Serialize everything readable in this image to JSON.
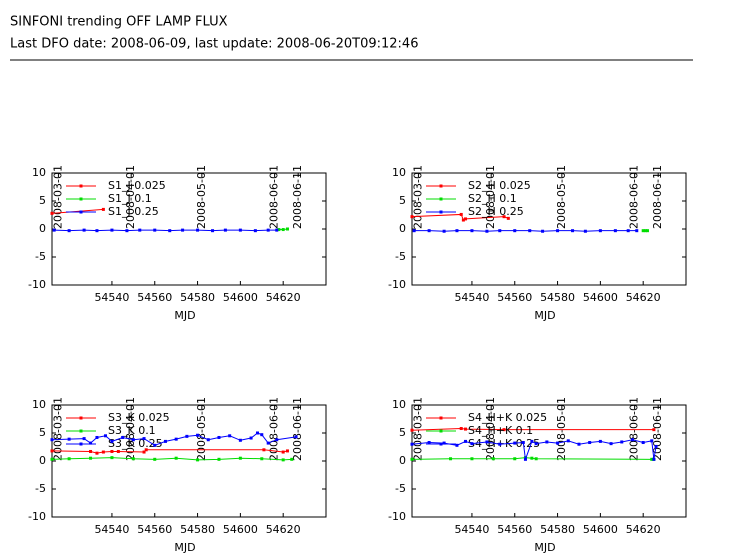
{
  "header": {
    "title": "SINFONI trending OFF LAMP FLUX",
    "subtitle": "Last DFO date: 2008-06-09, last update: 2008-06-20T09:12:46"
  },
  "chart_data": [
    {
      "type": "line",
      "x_label": "MJD",
      "xlim": [
        54512,
        54640
      ],
      "xticks": [
        54540,
        54560,
        54580,
        54600,
        54620
      ],
      "x2ticks": [
        {
          "value": 54515,
          "label": "2008-03-01"
        },
        {
          "value": 54549,
          "label": "2008-04-01"
        },
        {
          "value": 54582,
          "label": "2008-05-01"
        },
        {
          "value": 54616,
          "label": "2008-06-01"
        },
        {
          "value": 54627,
          "label": "2008-06-11"
        }
      ],
      "ylim": [
        -10,
        10
      ],
      "yticks": [
        -10,
        -5,
        0,
        5,
        10
      ],
      "series": [
        {
          "name": "S1_J 0.025",
          "color": "#ff0000",
          "x": [
            54512,
            54536
          ],
          "values": [
            2.8,
            3.5
          ]
        },
        {
          "name": "S1_J 0.1",
          "color": "#00dd00",
          "x": [
            54618,
            54620,
            54622
          ],
          "values": [
            -0.1,
            -0.1,
            0.0
          ]
        },
        {
          "name": "S1_J 0.25",
          "color": "#0000ff",
          "x": [
            54513,
            54520,
            54527,
            54533,
            54540,
            54547,
            54553,
            54560,
            54567,
            54573,
            54580,
            54587,
            54593,
            54600,
            54607,
            54613,
            54617
          ],
          "values": [
            -0.2,
            -0.3,
            -0.2,
            -0.3,
            -0.2,
            -0.3,
            -0.2,
            -0.2,
            -0.3,
            -0.2,
            -0.2,
            -0.3,
            -0.2,
            -0.2,
            -0.3,
            -0.2,
            -0.2
          ]
        }
      ]
    },
    {
      "type": "line",
      "x_label": "MJD",
      "xlim": [
        54512,
        54640
      ],
      "xticks": [
        54540,
        54560,
        54580,
        54600,
        54620
      ],
      "x2ticks": [
        {
          "value": 54515,
          "label": "2008-03-01"
        },
        {
          "value": 54549,
          "label": "2008-04-01"
        },
        {
          "value": 54582,
          "label": "2008-05-01"
        },
        {
          "value": 54616,
          "label": "2008-06-01"
        },
        {
          "value": 54627,
          "label": "2008-06-11"
        }
      ],
      "ylim": [
        -10,
        10
      ],
      "yticks": [
        -10,
        -5,
        0,
        5,
        10
      ],
      "series": [
        {
          "name": "S2_H 0.025",
          "color": "#ff0000",
          "x": [
            54512,
            54535,
            54536,
            54537,
            54555,
            54557
          ],
          "values": [
            2.2,
            2.6,
            1.6,
            1.8,
            2.2,
            1.9
          ]
        },
        {
          "name": "S2_H 0.1",
          "color": "#00dd00",
          "x": [
            54620,
            54621,
            54622
          ],
          "values": [
            -0.3,
            -0.3,
            -0.3
          ]
        },
        {
          "name": "S2_H 0.25",
          "color": "#0000ff",
          "x": [
            54513,
            54520,
            54527,
            54533,
            54540,
            54547,
            54553,
            54560,
            54567,
            54573,
            54580,
            54587,
            54593,
            54600,
            54607,
            54613,
            54617
          ],
          "values": [
            -0.3,
            -0.3,
            -0.4,
            -0.3,
            -0.3,
            -0.4,
            -0.3,
            -0.3,
            -0.3,
            -0.4,
            -0.3,
            -0.3,
            -0.4,
            -0.3,
            -0.3,
            -0.3,
            -0.3
          ]
        }
      ]
    },
    {
      "type": "line",
      "x_label": "MJD",
      "xlim": [
        54512,
        54640
      ],
      "xticks": [
        54540,
        54560,
        54580,
        54600,
        54620
      ],
      "x2ticks": [
        {
          "value": 54515,
          "label": "2008-03-01"
        },
        {
          "value": 54549,
          "label": "2008-04-01"
        },
        {
          "value": 54582,
          "label": "2008-05-01"
        },
        {
          "value": 54616,
          "label": "2008-06-01"
        },
        {
          "value": 54627,
          "label": "2008-06-11"
        }
      ],
      "ylim": [
        -10,
        10
      ],
      "yticks": [
        -10,
        -5,
        0,
        5,
        10
      ],
      "series": [
        {
          "name": "S3_K 0.025",
          "color": "#ff0000",
          "x": [
            54512,
            54530,
            54533,
            54536,
            54540,
            54543,
            54555,
            54556,
            54611,
            54620,
            54622
          ],
          "values": [
            1.8,
            1.7,
            1.4,
            1.6,
            1.7,
            1.7,
            1.6,
            2.0,
            2.0,
            1.6,
            1.8
          ]
        },
        {
          "name": "S3_K 0.1",
          "color": "#00dd00",
          "x": [
            54512,
            54520,
            54530,
            54540,
            54550,
            54560,
            54570,
            54580,
            54590,
            54600,
            54610,
            54620,
            54624
          ],
          "values": [
            0.3,
            0.4,
            0.5,
            0.6,
            0.4,
            0.3,
            0.5,
            0.2,
            0.3,
            0.5,
            0.4,
            0.2,
            0.3
          ]
        },
        {
          "name": "S3_K 0.25",
          "color": "#0000ff",
          "x": [
            54512,
            54520,
            54527,
            54530,
            54533,
            54537,
            54540,
            54545,
            54550,
            54555,
            54560,
            54565,
            54570,
            54575,
            54580,
            54585,
            54590,
            54595,
            54600,
            54605,
            54608,
            54610,
            54613,
            54617,
            54626
          ],
          "values": [
            3.8,
            3.9,
            4.0,
            3.2,
            4.2,
            4.5,
            3.5,
            4.2,
            3.8,
            4.0,
            2.8,
            3.5,
            3.9,
            4.4,
            4.6,
            3.8,
            4.2,
            4.5,
            3.7,
            4.1,
            5.0,
            4.7,
            3.2,
            3.8,
            4.3
          ]
        }
      ]
    },
    {
      "type": "line",
      "x_label": "MJD",
      "xlim": [
        54512,
        54640
      ],
      "xticks": [
        54540,
        54560,
        54580,
        54600,
        54620
      ],
      "x2ticks": [
        {
          "value": 54515,
          "label": "2008-03-01"
        },
        {
          "value": 54549,
          "label": "2008-04-01"
        },
        {
          "value": 54582,
          "label": "2008-05-01"
        },
        {
          "value": 54616,
          "label": "2008-06-01"
        },
        {
          "value": 54627,
          "label": "2008-06-11"
        }
      ],
      "ylim": [
        -10,
        10
      ],
      "yticks": [
        -10,
        -5,
        0,
        5,
        10
      ],
      "series": [
        {
          "name": "S4_H+K 0.025",
          "color": "#ff0000",
          "x": [
            54512,
            54535,
            54537,
            54555,
            54625
          ],
          "values": [
            5.5,
            5.8,
            5.7,
            5.6,
            5.6
          ]
        },
        {
          "name": "S4_H+K 0.1",
          "color": "#00dd00",
          "x": [
            54512,
            54530,
            54540,
            54550,
            54560,
            54565,
            54568,
            54570,
            54624,
            54625
          ],
          "values": [
            0.3,
            0.4,
            0.4,
            0.4,
            0.4,
            0.6,
            0.5,
            0.4,
            0.3,
            0.3
          ]
        },
        {
          "name": "S4_H+K 0.25",
          "color": "#0000ff",
          "x": [
            54512,
            54520,
            54527,
            54533,
            54537,
            54540,
            54547,
            54553,
            54560,
            54564,
            54565,
            54568,
            54570,
            54575,
            54580,
            54585,
            54590,
            54595,
            54600,
            54605,
            54610,
            54615,
            54620,
            54624,
            54625,
            54626
          ],
          "values": [
            3.0,
            3.3,
            3.2,
            2.8,
            3.5,
            3.1,
            3.4,
            3.0,
            3.2,
            3.3,
            0.3,
            3.5,
            3.1,
            3.4,
            3.2,
            3.6,
            3.0,
            3.3,
            3.5,
            3.1,
            3.4,
            3.8,
            3.3,
            3.6,
            0.3,
            2.6
          ]
        }
      ]
    }
  ]
}
